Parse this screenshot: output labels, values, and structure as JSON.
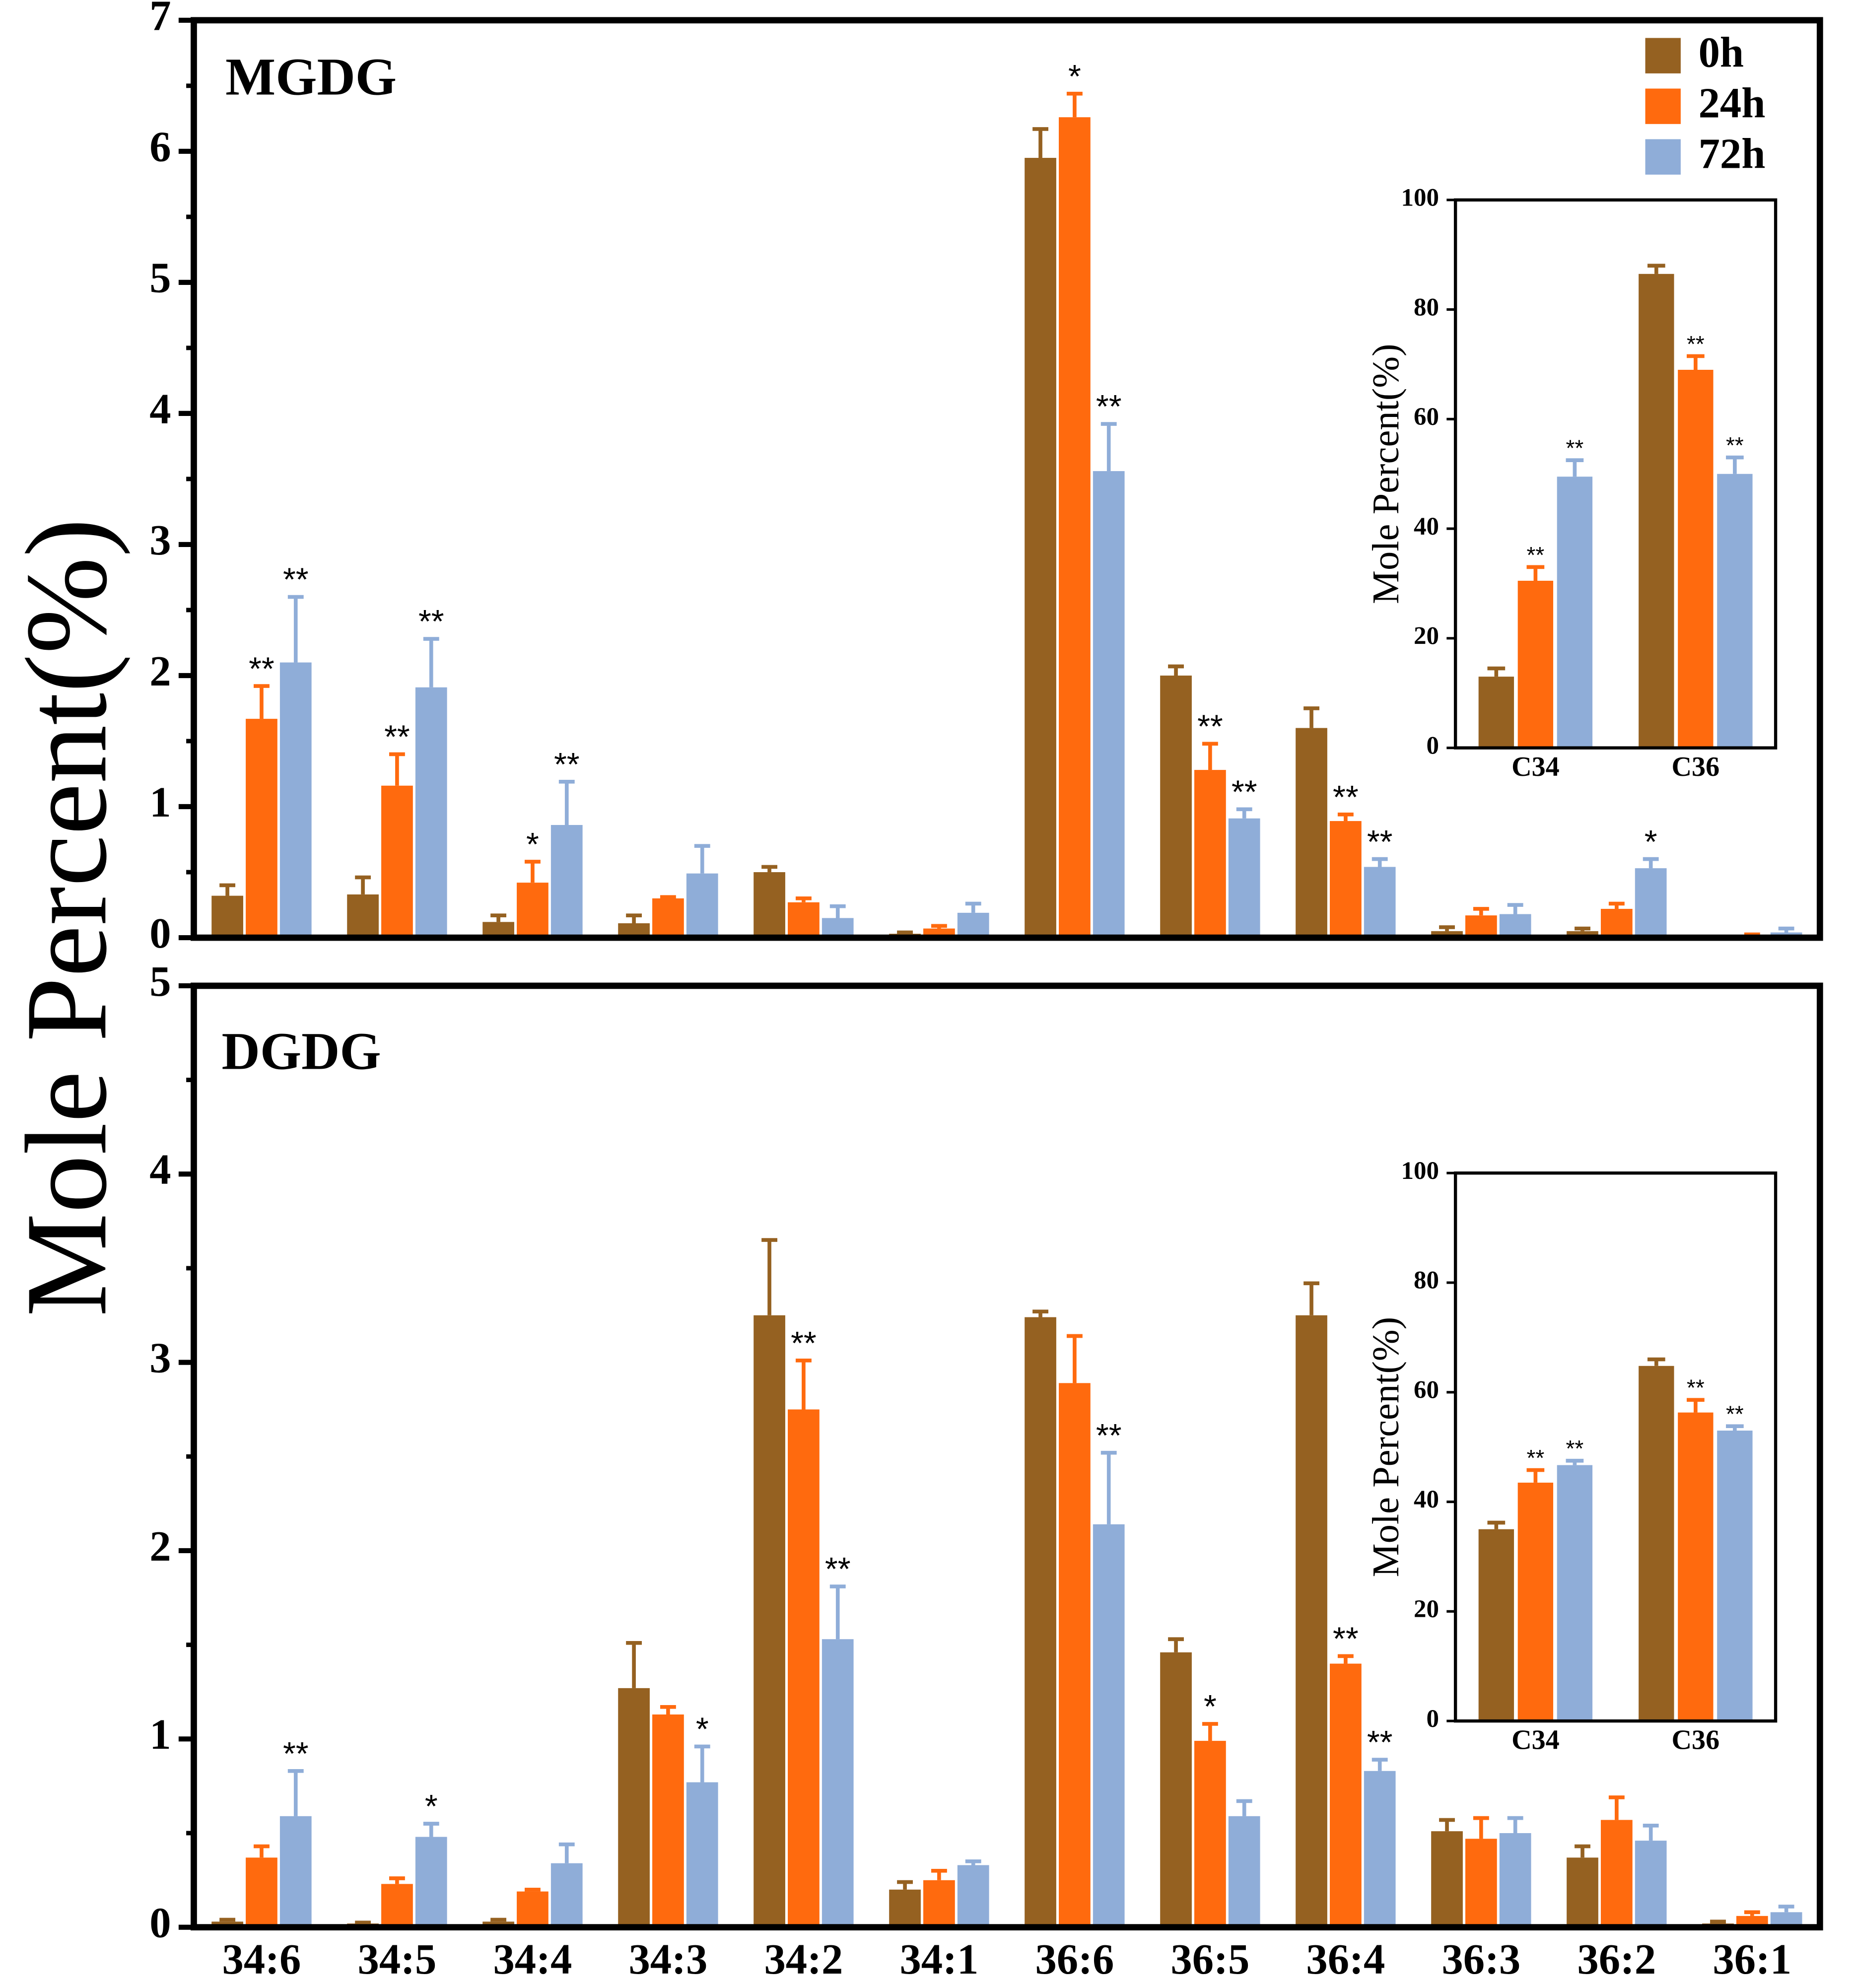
{
  "ylabel": "Mole Percent(%)",
  "chart_data": [
    {
      "type": "bar",
      "title": "MGDG",
      "ylim": [
        0,
        7
      ],
      "yticks": [
        0,
        1,
        2,
        3,
        4,
        5,
        6,
        7
      ],
      "series": [
        {
          "name": "0h",
          "color": "#956121",
          "values": [
            0.32,
            0.33,
            0.12,
            0.11,
            0.5,
            0.03,
            5.95,
            2.0,
            1.6,
            0.05,
            0.05,
            0.0
          ],
          "errors": [
            0.08,
            0.13,
            0.05,
            0.06,
            0.04,
            0.01,
            0.22,
            0.07,
            0.15,
            0.03,
            0.02,
            0.0
          ],
          "significance": [
            null,
            null,
            null,
            null,
            null,
            null,
            null,
            null,
            null,
            null,
            null,
            null
          ]
        },
        {
          "name": "24h",
          "color": "#ff6a0e",
          "values": [
            1.67,
            1.16,
            0.42,
            0.3,
            0.27,
            0.07,
            6.26,
            1.28,
            0.89,
            0.17,
            0.22,
            0.02
          ],
          "errors": [
            0.25,
            0.24,
            0.16,
            0.01,
            0.03,
            0.02,
            0.18,
            0.2,
            0.05,
            0.05,
            0.04,
            0.005
          ],
          "significance": [
            "**",
            "**",
            "*",
            null,
            null,
            null,
            "*",
            "**",
            "**",
            null,
            null,
            null
          ]
        },
        {
          "name": "72h",
          "color": "#8fadd8",
          "values": [
            2.1,
            1.91,
            0.86,
            0.49,
            0.15,
            0.19,
            3.56,
            0.91,
            0.54,
            0.18,
            0.53,
            0.04
          ],
          "errors": [
            0.5,
            0.37,
            0.33,
            0.21,
            0.09,
            0.07,
            0.36,
            0.07,
            0.06,
            0.07,
            0.07,
            0.03
          ],
          "significance": [
            "**",
            "**",
            "**",
            null,
            null,
            null,
            "**",
            "**",
            "**",
            null,
            "*",
            null
          ]
        }
      ]
    },
    {
      "type": "bar",
      "ylabel": "Mole Percent(%)",
      "categories": [
        "C34",
        "C36"
      ],
      "ylim": [
        0,
        100
      ],
      "yticks": [
        0,
        20,
        40,
        60,
        80,
        100
      ],
      "series": [
        {
          "color": "#956121",
          "values": [
            13,
            86.5
          ],
          "errors": [
            1.5,
            1.5
          ],
          "significance": [
            null,
            null
          ]
        },
        {
          "color": "#ff6a0e",
          "values": [
            30.5,
            69
          ],
          "errors": [
            2.5,
            2.5
          ],
          "significance": [
            "**",
            "**"
          ]
        },
        {
          "color": "#8fadd8",
          "values": [
            49.5,
            50
          ],
          "errors": [
            3,
            3
          ],
          "significance": [
            "**",
            "**"
          ]
        }
      ]
    },
    {
      "type": "bar",
      "title": "DGDG",
      "categories": [
        "34:6",
        "34:5",
        "34:4",
        "34:3",
        "34:2",
        "34:1",
        "36:6",
        "36:5",
        "36:4",
        "36:3",
        "36:2",
        "36:1"
      ],
      "ylim": [
        0,
        5
      ],
      "yticks": [
        0,
        1,
        2,
        3,
        4,
        5
      ],
      "series": [
        {
          "color": "#956121",
          "values": [
            0.03,
            0.02,
            0.03,
            1.27,
            3.25,
            0.2,
            3.24,
            1.46,
            3.25,
            0.51,
            0.37,
            0.02
          ],
          "errors": [
            0.01,
            0.005,
            0.01,
            0.24,
            0.4,
            0.04,
            0.03,
            0.07,
            0.17,
            0.06,
            0.06,
            0.01
          ],
          "significance": [
            null,
            null,
            null,
            null,
            null,
            null,
            null,
            null,
            null,
            null,
            null,
            null
          ]
        },
        {
          "color": "#ff6a0e",
          "values": [
            0.37,
            0.23,
            0.19,
            1.13,
            2.75,
            0.25,
            2.89,
            0.99,
            1.4,
            0.47,
            0.57,
            0.06
          ],
          "errors": [
            0.06,
            0.03,
            0.01,
            0.04,
            0.26,
            0.05,
            0.25,
            0.09,
            0.04,
            0.11,
            0.12,
            0.02
          ],
          "significance": [
            null,
            null,
            null,
            null,
            "**",
            null,
            null,
            "*",
            "**",
            null,
            null,
            null
          ]
        },
        {
          "color": "#8fadd8",
          "values": [
            0.59,
            0.48,
            0.34,
            0.77,
            1.53,
            0.33,
            2.14,
            0.59,
            0.83,
            0.5,
            0.46,
            0.08
          ],
          "errors": [
            0.24,
            0.07,
            0.1,
            0.19,
            0.28,
            0.02,
            0.38,
            0.08,
            0.06,
            0.08,
            0.08,
            0.03
          ],
          "significance": [
            "**",
            "*",
            null,
            "*",
            "**",
            null,
            "**",
            null,
            "**",
            null,
            null,
            null
          ]
        }
      ]
    },
    {
      "type": "bar",
      "ylabel": "Mole Percent(%)",
      "categories": [
        "C34",
        "C36"
      ],
      "ylim": [
        0,
        100
      ],
      "yticks": [
        0,
        20,
        40,
        60,
        80,
        100
      ],
      "series": [
        {
          "color": "#956121",
          "values": [
            35,
            64.8
          ],
          "errors": [
            1.2,
            1.2
          ],
          "significance": [
            null,
            null
          ]
        },
        {
          "color": "#ff6a0e",
          "values": [
            43.5,
            56.3
          ],
          "errors": [
            2.3,
            2.3
          ],
          "significance": [
            "**",
            "**"
          ]
        },
        {
          "color": "#8fadd8",
          "values": [
            46.7,
            53
          ],
          "errors": [
            0.8,
            0.8
          ],
          "significance": [
            "**",
            "**"
          ]
        }
      ]
    }
  ]
}
